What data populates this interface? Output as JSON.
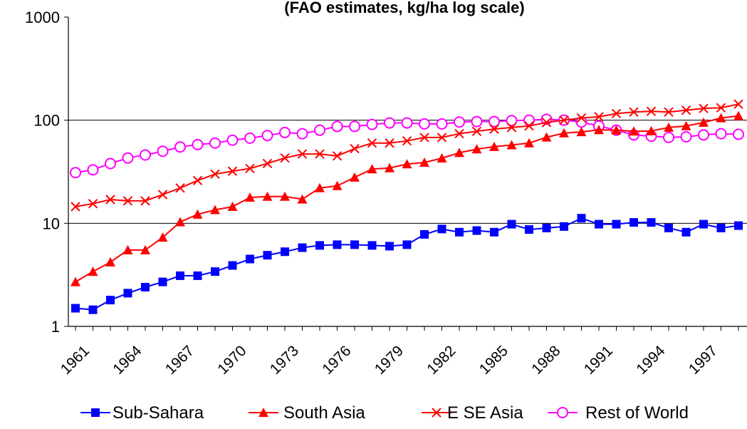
{
  "chart_data": {
    "type": "line",
    "title": "(FAO estimates, kg/ha log scale)",
    "xlabel": "",
    "ylabel": "",
    "y_scale": "log",
    "ylim": [
      1,
      1000
    ],
    "xlim": [
      1961,
      1999
    ],
    "y_ticks": [
      "1",
      "10",
      "100",
      "1000"
    ],
    "x_ticks": [
      "1961",
      "1964",
      "1967",
      "1970",
      "1973",
      "1976",
      "1979",
      "1982",
      "1985",
      "1988",
      "1991",
      "1994",
      "1997"
    ],
    "grid": "horizontal lines at 10 and 100",
    "legend_position": "bottom",
    "x": [
      1961,
      1962,
      1963,
      1964,
      1965,
      1966,
      1967,
      1968,
      1969,
      1970,
      1971,
      1972,
      1973,
      1974,
      1975,
      1976,
      1977,
      1978,
      1979,
      1980,
      1981,
      1982,
      1983,
      1984,
      1985,
      1986,
      1987,
      1988,
      1989,
      1990,
      1991,
      1992,
      1993,
      1994,
      1995,
      1996,
      1997,
      1998,
      1999
    ],
    "series": [
      {
        "name": "Sub-Sahara",
        "color": "#0000ff",
        "marker": "square",
        "values": [
          1.5,
          1.45,
          1.8,
          2.1,
          2.4,
          2.7,
          3.1,
          3.1,
          3.4,
          3.9,
          4.5,
          4.9,
          5.3,
          5.8,
          6.1,
          6.2,
          6.2,
          6.1,
          6.0,
          6.2,
          7.8,
          8.8,
          8.2,
          8.5,
          8.2,
          9.8,
          8.7,
          9.0,
          9.3,
          11.2,
          9.8,
          9.8,
          10.2,
          10.2,
          9.0,
          8.2,
          9.8,
          9.0,
          9.5
        ]
      },
      {
        "name": "South Asia",
        "color": "#ff0000",
        "marker": "triangle",
        "values": [
          2.7,
          3.4,
          4.2,
          5.5,
          5.5,
          7.3,
          10.3,
          12.2,
          13.5,
          14.5,
          17.8,
          18.2,
          18.2,
          17.1,
          22.0,
          23.1,
          27.9,
          33.6,
          34.4,
          37.5,
          38.9,
          42.8,
          48.3,
          52.4,
          55.3,
          57.4,
          60.0,
          68.3,
          75.0,
          77.0,
          80.5,
          80.0,
          78.0,
          78.5,
          85.0,
          88.0,
          95.0,
          105.0,
          110.0
        ]
      },
      {
        "name": "E SE Asia",
        "color": "#ff0000",
        "marker": "x",
        "values": [
          14.5,
          15.5,
          17.0,
          16.5,
          16.5,
          19.0,
          22.0,
          26.0,
          30.0,
          32.0,
          34.0,
          38.0,
          43.0,
          47.0,
          47.0,
          45.0,
          53.0,
          60.0,
          60.0,
          63.0,
          68.0,
          68.0,
          74.0,
          78.0,
          82.0,
          85.0,
          88.0,
          95.0,
          100.0,
          105.0,
          108.0,
          116.0,
          120.0,
          122.0,
          120.0,
          125.0,
          130.0,
          132.0,
          143.0
        ]
      },
      {
        "name": "Rest of World",
        "color": "#ff00ff",
        "marker": "circle",
        "values": [
          31.0,
          33.0,
          38.0,
          43.0,
          46.0,
          50.0,
          55.0,
          58.0,
          60.0,
          64.0,
          67.0,
          71.0,
          76.0,
          74.0,
          80.0,
          87.0,
          87.0,
          91.0,
          94.0,
          94.0,
          92.0,
          92.0,
          96.0,
          97.0,
          97.0,
          99.0,
          100.0,
          102.0,
          100.0,
          96.0,
          88.0,
          80.0,
          72.0,
          70.0,
          68.0,
          69.0,
          72.0,
          74.0,
          73.0
        ]
      }
    ]
  }
}
